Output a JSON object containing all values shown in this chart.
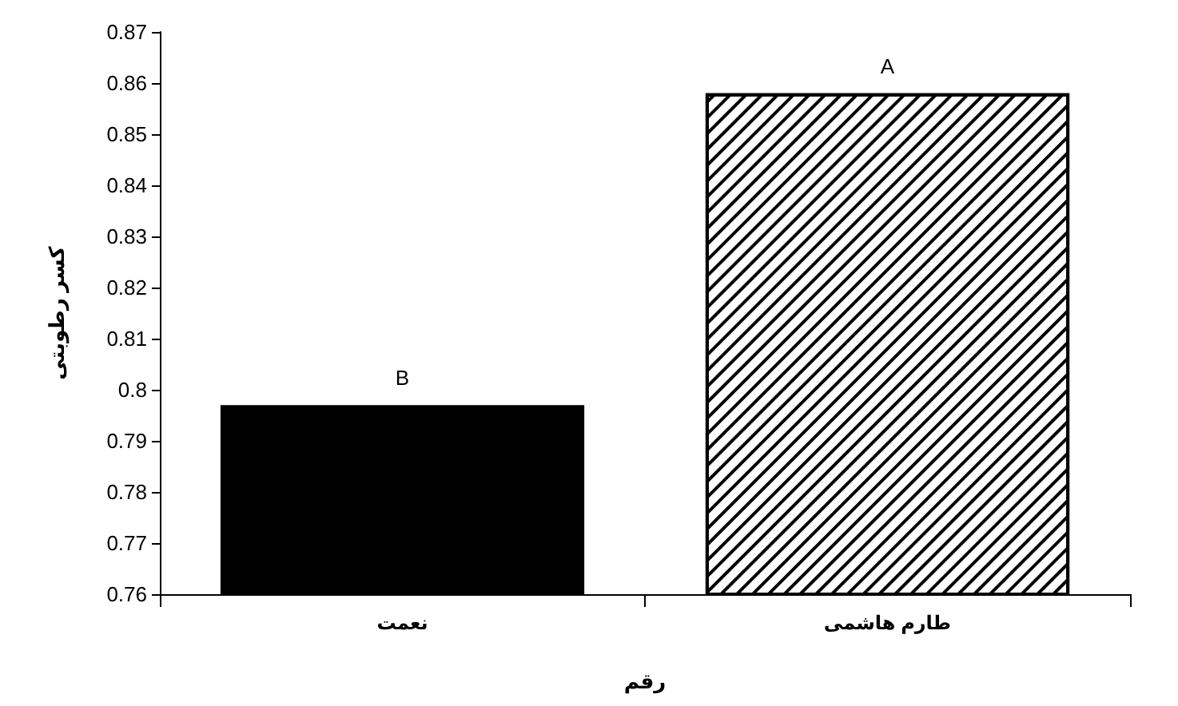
{
  "chart_data": {
    "type": "bar",
    "xlabel": "رقم",
    "ylabel": "کسر رطوبتی",
    "categories": [
      "نعمت",
      "طارم هاشمی"
    ],
    "values": [
      0.797,
      0.858
    ],
    "colors": [
      "#000000",
      "#ffffff"
    ],
    "ylim": [
      0.76,
      0.87
    ],
    "yticks": [
      0.76,
      0.77,
      0.78,
      0.79,
      0.8,
      0.81,
      0.82,
      0.83,
      0.84,
      0.85,
      0.86,
      0.87
    ],
    "annotations": [
      {
        "text": "B",
        "x": "نعمت",
        "y": 0.797
      },
      {
        "text": "A",
        "x": "طارم هاشمی",
        "y": 0.858
      }
    ],
    "grid": false
  }
}
